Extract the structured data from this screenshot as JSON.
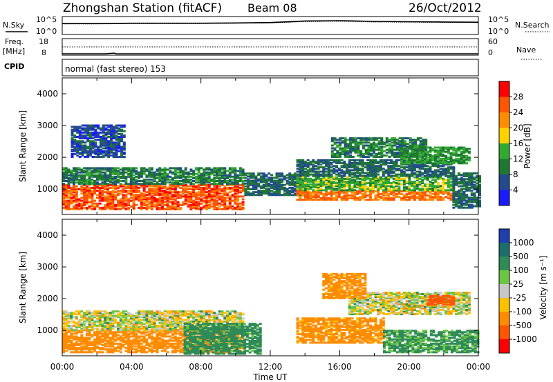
{
  "header": {
    "station": "Zhongshan Station (fitACF)",
    "beam": "Beam 08",
    "date": "26/Oct/2012",
    "cpid_label": "CPID",
    "cpid_value": "normal (fast stereo) 153"
  },
  "panels": {
    "nsky": {
      "label": "N.Sky",
      "right_label": "N.Search",
      "ticks": [
        "10^5",
        "10^0"
      ]
    },
    "freq": {
      "label_line1": "Freq.",
      "label_line2": "[MHz]",
      "ticks": [
        "18",
        "8"
      ],
      "right_label": "Nave",
      "right_ticks": [
        "60",
        "0"
      ]
    }
  },
  "axes": {
    "xlabel": "Time UT",
    "xticks": [
      "00:00",
      "04:00",
      "08:00",
      "12:00",
      "16:00",
      "20:00",
      "00:00"
    ],
    "ylabel": "Slant Range [km]",
    "yticks": [
      "1000",
      "2000",
      "3000",
      "4000"
    ]
  },
  "colorbars": {
    "power": {
      "label": "Power [dB]",
      "ticks": [
        "28",
        "24",
        "20",
        "16",
        "12",
        "8",
        "4"
      ],
      "colors": [
        "#ff0000",
        "#ff5500",
        "#ff8c00",
        "#ffd200",
        "#32aa32",
        "#1e7832",
        "#234b8c",
        "#1a1aff"
      ]
    },
    "velocity": {
      "label": "Velocity [m s⁻¹]",
      "ticks": [
        "1000",
        "500",
        "100",
        "25",
        "-25",
        "-100",
        "-500",
        "-1000"
      ],
      "colors": [
        "#1f3fae",
        "#1d6d6d",
        "#2e8b57",
        "#6cc644",
        "#c8c8c8",
        "#ffc000",
        "#ff8c00",
        "#ff5500",
        "#ff0000"
      ]
    }
  },
  "chart_data": [
    {
      "type": "line",
      "title": "N.Sky / N.Search",
      "x_range_hours": [
        0,
        24
      ],
      "ylim": [
        0,
        100000
      ],
      "yscale": "log",
      "series": [
        {
          "name": "N.Sky",
          "x": [
            0,
            2,
            4,
            6,
            8,
            10,
            12,
            14,
            16,
            18,
            20,
            22,
            24
          ],
          "values": [
            2000,
            2000,
            2500,
            2500,
            2500,
            3000,
            4000,
            12000,
            15000,
            9000,
            7000,
            6000,
            5000
          ]
        },
        {
          "name": "N.Search",
          "x": [
            0,
            2,
            4,
            6,
            8,
            10,
            12,
            14,
            16,
            18,
            20,
            22,
            24
          ],
          "values": [
            1500,
            1500,
            2000,
            2000,
            2000,
            2500,
            3000,
            8000,
            10000,
            6000,
            5000,
            4500,
            4000
          ]
        }
      ]
    },
    {
      "type": "line",
      "title": "Freq / Nave",
      "x_range_hours": [
        0,
        24
      ],
      "series": [
        {
          "name": "Freq",
          "unit": "MHz",
          "ylim": [
            8,
            18
          ],
          "x": [
            0,
            2.5,
            3.0,
            3.1,
            24
          ],
          "values": [
            8,
            8,
            8.5,
            8,
            8
          ]
        },
        {
          "name": "Nave",
          "ylim": [
            0,
            60
          ],
          "x": [
            0,
            24
          ],
          "values": [
            30,
            30
          ]
        }
      ]
    },
    {
      "type": "heatmap",
      "title": "Power [dB]",
      "x_range_hours": [
        0,
        24
      ],
      "ylim": [
        200,
        4500
      ],
      "yunit": "km",
      "regions": [
        {
          "t0": 0.0,
          "t1": 10.5,
          "r0": 350,
          "r1": 1150,
          "dB": 26
        },
        {
          "t0": 0.0,
          "t1": 10.5,
          "r0": 1150,
          "r1": 1650,
          "dB": 10
        },
        {
          "t0": 0.5,
          "t1": 3.5,
          "r0": 2000,
          "r1": 3000,
          "dB": 6
        },
        {
          "t0": 10.5,
          "t1": 14.0,
          "r0": 800,
          "r1": 1500,
          "dB": 8
        },
        {
          "t0": 13.5,
          "t1": 22.5,
          "r0": 650,
          "r1": 950,
          "dB": 24
        },
        {
          "t0": 13.5,
          "t1": 22.5,
          "r0": 950,
          "r1": 1400,
          "dB": 14
        },
        {
          "t0": 13.5,
          "t1": 22.5,
          "r0": 1400,
          "r1": 1900,
          "dB": 8
        },
        {
          "t0": 15.5,
          "t1": 21.0,
          "r0": 2000,
          "r1": 2600,
          "dB": 10
        },
        {
          "t0": 19.5,
          "t1": 23.5,
          "r0": 1800,
          "r1": 2300,
          "dB": 12
        },
        {
          "t0": 22.5,
          "t1": 24.0,
          "r0": 400,
          "r1": 1500,
          "dB": 8
        }
      ]
    },
    {
      "type": "heatmap",
      "title": "Velocity [m s⁻¹]",
      "x_range_hours": [
        0,
        24
      ],
      "ylim": [
        200,
        4500
      ],
      "yunit": "km",
      "regions": [
        {
          "t0": 0.0,
          "t1": 10.5,
          "r0": 300,
          "r1": 1000,
          "velocity": -300
        },
        {
          "t0": 0.0,
          "t1": 10.5,
          "r0": 1000,
          "r1": 1600,
          "velocity": 0
        },
        {
          "t0": 7.0,
          "t1": 11.5,
          "r0": 250,
          "r1": 1200,
          "velocity": 200
        },
        {
          "t0": 13.5,
          "t1": 18.5,
          "r0": 600,
          "r1": 1400,
          "velocity": -200
        },
        {
          "t0": 18.5,
          "t1": 24.0,
          "r0": 300,
          "r1": 1000,
          "velocity": 150
        },
        {
          "t0": 16.5,
          "t1": 23.5,
          "r0": 1500,
          "r1": 2200,
          "velocity": 0
        },
        {
          "t0": 15.0,
          "t1": 17.5,
          "r0": 2000,
          "r1": 2800,
          "velocity": -200
        },
        {
          "t0": 21.0,
          "t1": 22.5,
          "r0": 1800,
          "r1": 2100,
          "velocity": -700
        }
      ]
    }
  ]
}
